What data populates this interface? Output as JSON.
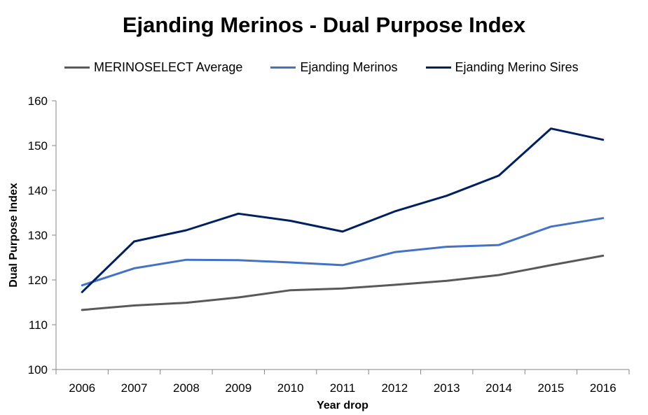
{
  "chart_data": {
    "type": "line",
    "title": "Ejanding Merinos - Dual Purpose Index",
    "xlabel": "Year drop",
    "ylabel": "Dual Purpose Index",
    "categories": [
      "2006",
      "2007",
      "2008",
      "2009",
      "2010",
      "2011",
      "2012",
      "2013",
      "2014",
      "2015",
      "2016"
    ],
    "ylim": [
      100,
      160
    ],
    "yticks": [
      100,
      110,
      120,
      130,
      140,
      150,
      160
    ],
    "grid": false,
    "legend_position": "top",
    "series": [
      {
        "name": "MERINOSELECT Average",
        "color": "#595959",
        "values": [
          113.3,
          114.3,
          114.9,
          116.1,
          117.7,
          118.1,
          118.9,
          119.8,
          121.1,
          123.3,
          125.4
        ]
      },
      {
        "name": "Ejanding Merinos",
        "color": "#4472c4",
        "values": [
          118.8,
          122.6,
          124.5,
          124.4,
          123.9,
          123.3,
          126.2,
          127.4,
          127.8,
          131.9,
          133.8
        ]
      },
      {
        "name": "Ejanding Merino Sires",
        "color": "#002060",
        "values": [
          117.3,
          128.6,
          131.1,
          134.8,
          133.2,
          130.8,
          135.3,
          138.8,
          143.3,
          153.8,
          151.3
        ]
      }
    ]
  }
}
